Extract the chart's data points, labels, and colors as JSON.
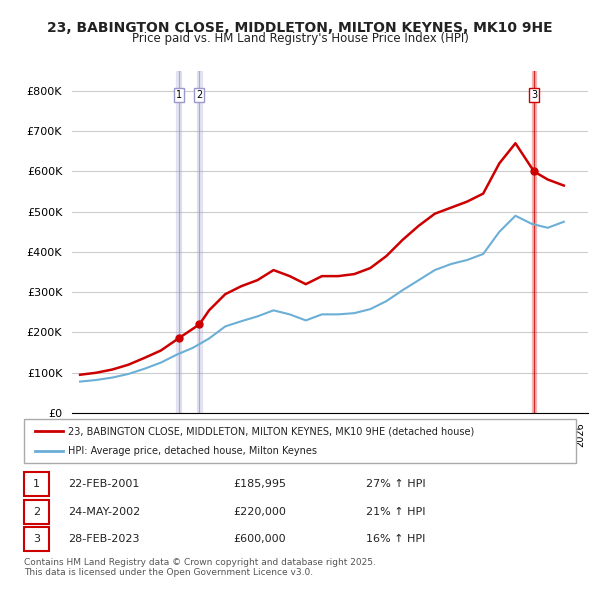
{
  "title": "23, BABINGTON CLOSE, MIDDLETON, MILTON KEYNES, MK10 9HE",
  "subtitle": "Price paid vs. HM Land Registry's House Price Index (HPI)",
  "legend_line1": "23, BABINGTON CLOSE, MIDDLETON, MILTON KEYNES, MK10 9HE (detached house)",
  "legend_line2": "HPI: Average price, detached house, Milton Keynes",
  "footer": "Contains HM Land Registry data © Crown copyright and database right 2025.\nThis data is licensed under the Open Government Licence v3.0.",
  "transactions": [
    {
      "num": 1,
      "date": "22-FEB-2001",
      "price": "£185,995",
      "hpi": "27% ↑ HPI",
      "x": 2001.13
    },
    {
      "num": 2,
      "date": "24-MAY-2002",
      "price": "£220,000",
      "hpi": "21% ↑ HPI",
      "x": 2002.4
    },
    {
      "num": 3,
      "date": "28-FEB-2023",
      "price": "£600,000",
      "hpi": "16% ↑ HPI",
      "x": 2023.15
    }
  ],
  "transaction_prices": [
    185995,
    220000,
    600000
  ],
  "hpi_color": "#6baed6",
  "price_color": "#cc0000",
  "vline_color_1": "#9999cc",
  "vline_color_2": "#cc0000",
  "background_color": "#ffffff",
  "grid_color": "#cccccc",
  "ylim": [
    0,
    850000
  ],
  "xlim": [
    1994.5,
    2026.5
  ]
}
